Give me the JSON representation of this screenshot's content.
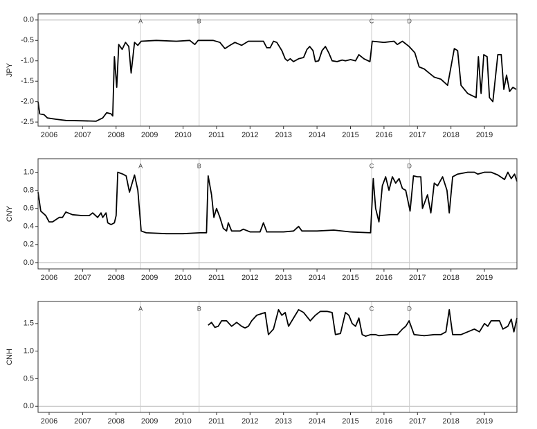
{
  "chart_data": [
    {
      "type": "line",
      "ylabel": "JPY",
      "xlim": [
        2005.67,
        2019.97
      ],
      "xticks": [
        2006,
        2007,
        2008,
        2009,
        2010,
        2011,
        2012,
        2013,
        2014,
        2015,
        2016,
        2017,
        2018,
        2019
      ],
      "ylim": [
        -2.6,
        0.15
      ],
      "yticks": [
        {
          "value": 0,
          "label": "0.0"
        },
        -0.5,
        {
          "value": -1,
          "label": "-1.0"
        },
        -1.5,
        {
          "value": -2,
          "label": "-2.0"
        },
        -2.5
      ],
      "annotations": [
        {
          "label": "A",
          "x": 2008.73
        },
        {
          "label": "B",
          "x": 2010.48
        },
        {
          "label": "C",
          "x": 2015.63
        },
        {
          "label": "D",
          "x": 2016.76
        }
      ],
      "color": "#000000",
      "x": [
        2005.67,
        2005.72,
        2005.85,
        2005.95,
        2006.2,
        2006.5,
        2007.0,
        2007.4,
        2007.6,
        2007.72,
        2007.85,
        2007.9,
        2007.95,
        2008.02,
        2008.08,
        2008.18,
        2008.28,
        2008.38,
        2008.45,
        2008.55,
        2008.65,
        2008.75,
        2009.2,
        2009.8,
        2010.2,
        2010.35,
        2010.45,
        2010.9,
        2011.1,
        2011.25,
        2011.4,
        2011.55,
        2011.75,
        2011.95,
        2012.4,
        2012.5,
        2012.6,
        2012.7,
        2012.8,
        2012.95,
        2013.05,
        2013.12,
        2013.2,
        2013.3,
        2013.45,
        2013.6,
        2013.7,
        2013.78,
        2013.88,
        2013.95,
        2014.05,
        2014.15,
        2014.25,
        2014.35,
        2014.45,
        2014.6,
        2014.75,
        2014.85,
        2015.0,
        2015.15,
        2015.25,
        2015.4,
        2015.58,
        2015.65,
        2016.0,
        2016.3,
        2016.4,
        2016.55,
        2016.75,
        2016.92,
        2017.05,
        2017.2,
        2017.35,
        2017.5,
        2017.7,
        2017.9,
        2018.1,
        2018.2,
        2018.3,
        2018.5,
        2018.75,
        2018.82,
        2018.9,
        2018.98,
        2019.08,
        2019.15,
        2019.25,
        2019.4,
        2019.5,
        2019.58,
        2019.66,
        2019.75,
        2019.85,
        2019.95
      ],
      "values": [
        -2.0,
        -2.3,
        -2.32,
        -2.4,
        -2.43,
        -2.46,
        -2.47,
        -2.48,
        -2.4,
        -2.27,
        -2.3,
        -2.35,
        -0.9,
        -1.65,
        -0.6,
        -0.72,
        -0.55,
        -0.65,
        -1.3,
        -0.55,
        -0.62,
        -0.52,
        -0.5,
        -0.52,
        -0.5,
        -0.6,
        -0.5,
        -0.5,
        -0.55,
        -0.7,
        -0.62,
        -0.55,
        -0.62,
        -0.52,
        -0.52,
        -0.68,
        -0.68,
        -0.52,
        -0.55,
        -0.75,
        -0.95,
        -1.0,
        -0.95,
        -1.02,
        -0.95,
        -0.92,
        -0.72,
        -0.65,
        -0.75,
        -1.02,
        -1.0,
        -0.75,
        -0.65,
        -0.8,
        -1.0,
        -1.02,
        -0.98,
        -1.0,
        -0.97,
        -1.0,
        -0.85,
        -0.95,
        -1.02,
        -0.52,
        -0.55,
        -0.52,
        -0.6,
        -0.52,
        -0.65,
        -0.8,
        -1.15,
        -1.2,
        -1.3,
        -1.4,
        -1.45,
        -1.6,
        -0.7,
        -0.75,
        -1.6,
        -1.8,
        -1.9,
        -0.9,
        -1.8,
        -0.85,
        -0.9,
        -1.9,
        -2.0,
        -0.85,
        -0.85,
        -1.7,
        -1.35,
        -1.75,
        -1.65,
        -1.7
      ]
    },
    {
      "type": "line",
      "ylabel": "CNY",
      "xlim": [
        2005.67,
        2019.97
      ],
      "xticks": [
        2006,
        2007,
        2008,
        2009,
        2010,
        2011,
        2012,
        2013,
        2014,
        2015,
        2016,
        2017,
        2018,
        2019
      ],
      "ylim": [
        -0.07,
        1.15
      ],
      "yticks": [
        {
          "value": 0,
          "label": "0.0"
        },
        0.2,
        0.4,
        0.6,
        0.8,
        {
          "value": 1,
          "label": "1.0"
        }
      ],
      "annotations": [
        {
          "label": "A",
          "x": 2008.73
        },
        {
          "label": "B",
          "x": 2010.48
        },
        {
          "label": "C",
          "x": 2015.63
        },
        {
          "label": "D",
          "x": 2016.76
        }
      ],
      "color": "#000000",
      "x": [
        2005.67,
        2005.75,
        2005.9,
        2006.0,
        2006.1,
        2006.3,
        2006.4,
        2006.5,
        2006.7,
        2007.0,
        2007.2,
        2007.3,
        2007.45,
        2007.55,
        2007.6,
        2007.7,
        2007.75,
        2007.85,
        2007.95,
        2008.0,
        2008.05,
        2008.2,
        2008.3,
        2008.4,
        2008.55,
        2008.65,
        2008.75,
        2008.9,
        2009.5,
        2010.0,
        2010.5,
        2010.6,
        2010.7,
        2010.75,
        2010.85,
        2010.92,
        2011.0,
        2011.1,
        2011.2,
        2011.3,
        2011.35,
        2011.45,
        2011.7,
        2011.8,
        2012.0,
        2012.3,
        2012.4,
        2012.5,
        2013.0,
        2013.3,
        2013.45,
        2013.55,
        2014.0,
        2014.5,
        2015.0,
        2015.6,
        2015.68,
        2015.75,
        2015.85,
        2015.95,
        2016.05,
        2016.15,
        2016.25,
        2016.35,
        2016.45,
        2016.55,
        2016.65,
        2016.78,
        2016.88,
        2017.0,
        2017.1,
        2017.15,
        2017.3,
        2017.4,
        2017.5,
        2017.6,
        2017.75,
        2017.88,
        2017.95,
        2018.05,
        2018.2,
        2018.5,
        2018.7,
        2018.8,
        2019.0,
        2019.2,
        2019.4,
        2019.6,
        2019.7,
        2019.8,
        2019.9,
        2019.97
      ],
      "values": [
        0.78,
        0.57,
        0.52,
        0.45,
        0.45,
        0.5,
        0.5,
        0.56,
        0.53,
        0.52,
        0.52,
        0.55,
        0.5,
        0.55,
        0.5,
        0.55,
        0.44,
        0.42,
        0.44,
        0.52,
        1.0,
        0.98,
        0.96,
        0.78,
        0.97,
        0.8,
        0.35,
        0.33,
        0.32,
        0.32,
        0.33,
        0.33,
        0.33,
        0.96,
        0.75,
        0.5,
        0.6,
        0.5,
        0.38,
        0.35,
        0.44,
        0.35,
        0.35,
        0.37,
        0.34,
        0.34,
        0.44,
        0.34,
        0.34,
        0.35,
        0.4,
        0.35,
        0.35,
        0.36,
        0.34,
        0.33,
        0.93,
        0.6,
        0.45,
        0.85,
        0.95,
        0.8,
        0.95,
        0.88,
        0.93,
        0.82,
        0.8,
        0.57,
        0.96,
        0.95,
        0.95,
        0.6,
        0.75,
        0.55,
        0.88,
        0.85,
        0.95,
        0.8,
        0.55,
        0.95,
        0.98,
        1.0,
        1.0,
        0.98,
        1.0,
        1.0,
        0.97,
        0.92,
        1.0,
        0.93,
        0.98,
        0.9
      ]
    },
    {
      "type": "line",
      "ylabel": "CNH",
      "xlim": [
        2005.67,
        2019.97
      ],
      "xticks": [
        2006,
        2007,
        2008,
        2009,
        2010,
        2011,
        2012,
        2013,
        2014,
        2015,
        2016,
        2017,
        2018,
        2019
      ],
      "ylim": [
        -0.11,
        1.9
      ],
      "yticks": [
        {
          "value": 0,
          "label": "0.0"
        },
        0.5,
        {
          "value": 1,
          "label": "1.0"
        },
        1.5
      ],
      "annotations": [
        {
          "label": "A",
          "x": 2008.73
        },
        {
          "label": "B",
          "x": 2010.48
        },
        {
          "label": "C",
          "x": 2015.63
        },
        {
          "label": "D",
          "x": 2016.76
        }
      ],
      "color": "#000000",
      "x": [
        2010.75,
        2010.85,
        2010.95,
        2011.05,
        2011.15,
        2011.3,
        2011.45,
        2011.6,
        2011.75,
        2011.85,
        2011.95,
        2012.05,
        2012.2,
        2012.35,
        2012.45,
        2012.55,
        2012.7,
        2012.85,
        2012.95,
        2013.05,
        2013.15,
        2013.3,
        2013.45,
        2013.6,
        2013.8,
        2013.95,
        2014.1,
        2014.3,
        2014.45,
        2014.55,
        2014.7,
        2014.85,
        2014.95,
        2015.05,
        2015.15,
        2015.25,
        2015.35,
        2015.45,
        2015.6,
        2015.68,
        2015.75,
        2015.85,
        2016.2,
        2016.4,
        2016.55,
        2016.65,
        2016.75,
        2016.9,
        2017.2,
        2017.5,
        2017.7,
        2017.85,
        2017.95,
        2018.05,
        2018.3,
        2018.5,
        2018.7,
        2018.85,
        2019.0,
        2019.1,
        2019.2,
        2019.45,
        2019.55,
        2019.7,
        2019.8,
        2019.88,
        2019.97
      ],
      "values": [
        1.47,
        1.52,
        1.43,
        1.45,
        1.55,
        1.55,
        1.45,
        1.52,
        1.45,
        1.42,
        1.45,
        1.55,
        1.65,
        1.68,
        1.7,
        1.3,
        1.4,
        1.75,
        1.65,
        1.7,
        1.45,
        1.6,
        1.75,
        1.7,
        1.55,
        1.65,
        1.72,
        1.72,
        1.7,
        1.3,
        1.32,
        1.7,
        1.65,
        1.5,
        1.45,
        1.6,
        1.3,
        1.27,
        1.3,
        1.3,
        1.3,
        1.28,
        1.3,
        1.3,
        1.4,
        1.45,
        1.55,
        1.3,
        1.28,
        1.3,
        1.3,
        1.35,
        1.75,
        1.3,
        1.3,
        1.35,
        1.4,
        1.35,
        1.5,
        1.45,
        1.55,
        1.55,
        1.4,
        1.45,
        1.58,
        1.35,
        1.6
      ]
    }
  ]
}
